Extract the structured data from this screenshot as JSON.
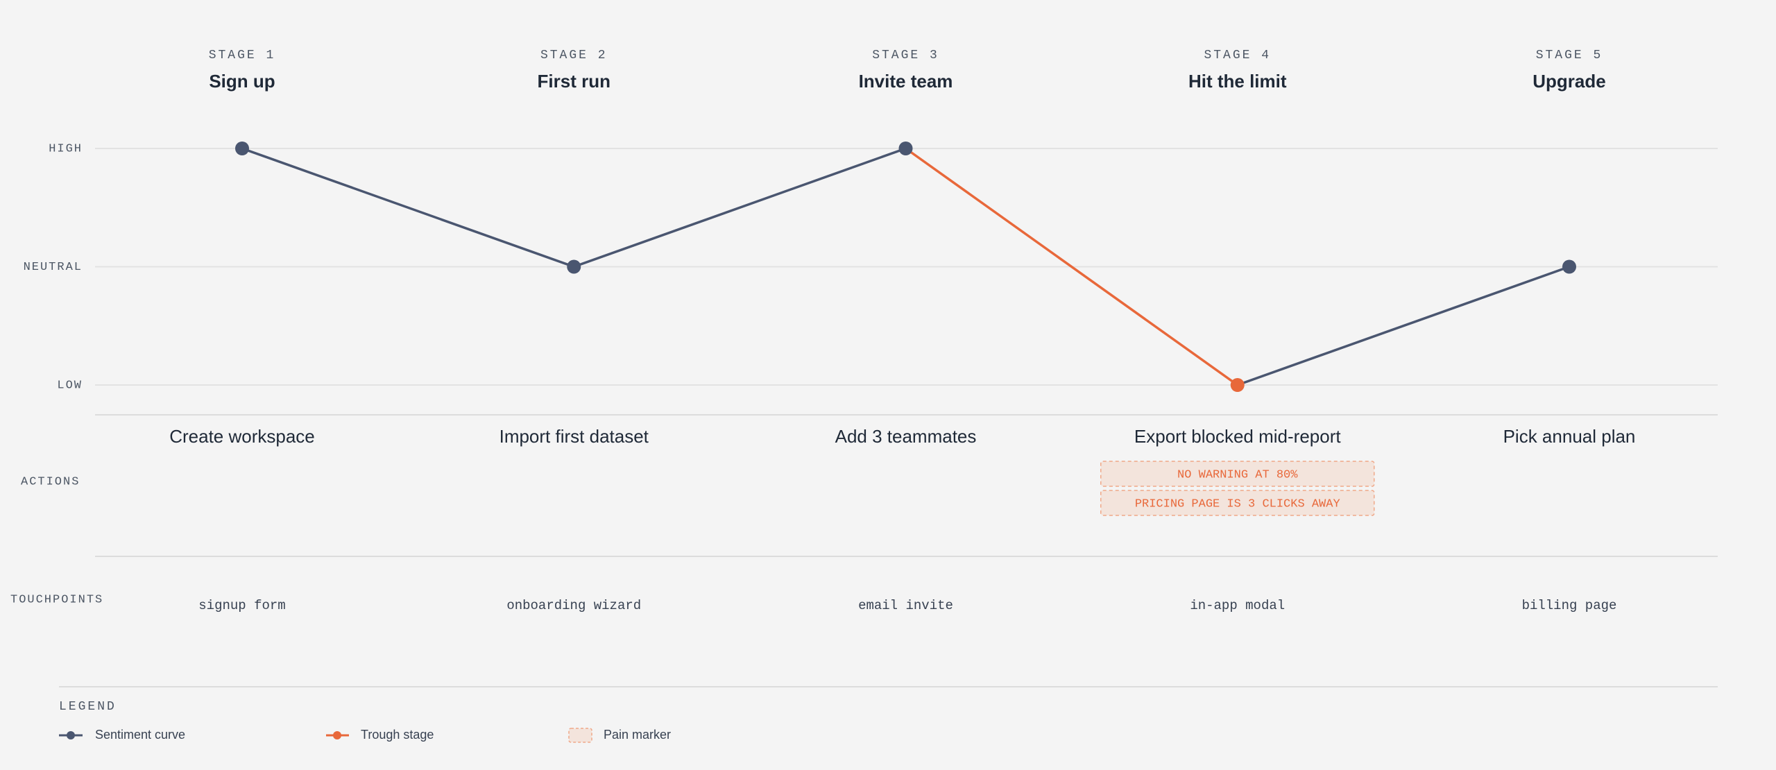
{
  "chart_data": {
    "type": "line",
    "stage_labels": [
      "STAGE 1",
      "STAGE 2",
      "STAGE 3",
      "STAGE 4",
      "STAGE 5"
    ],
    "categories": [
      "Sign up",
      "First run",
      "Invite team",
      "Hit the limit",
      "Upgrade"
    ],
    "series": [
      {
        "name": "Sentiment curve",
        "color": "#4a5670",
        "values": [
          1,
          0,
          1,
          -1,
          0
        ]
      }
    ],
    "trough": {
      "name": "Trough stage",
      "color": "#e8683a"
    },
    "ylim": [
      -1,
      1
    ],
    "yticks": [
      {
        "value": 1,
        "label": "HIGH"
      },
      {
        "value": 0,
        "label": "NEUTRAL"
      },
      {
        "value": -1,
        "label": "LOW"
      }
    ],
    "grid": true,
    "actions": {
      "label": "ACTIONS",
      "values": [
        "Create workspace",
        "Import first dataset",
        "Add 3 teammates",
        "Export blocked mid-report",
        "Pick annual plan"
      ]
    },
    "pain_markers": {
      "name": "Pain marker",
      "color": "#e8683a",
      "items": [
        [],
        [],
        [],
        [
          "NO WARNING AT 80%",
          "PRICING PAGE IS 3 CLICKS AWAY"
        ],
        []
      ]
    },
    "touchpoints": {
      "label": "TOUCHPOINTS",
      "values": [
        "signup form",
        "onboarding wizard",
        "email invite",
        "in-app modal",
        "billing page"
      ]
    },
    "legend_title": "LEGEND"
  }
}
